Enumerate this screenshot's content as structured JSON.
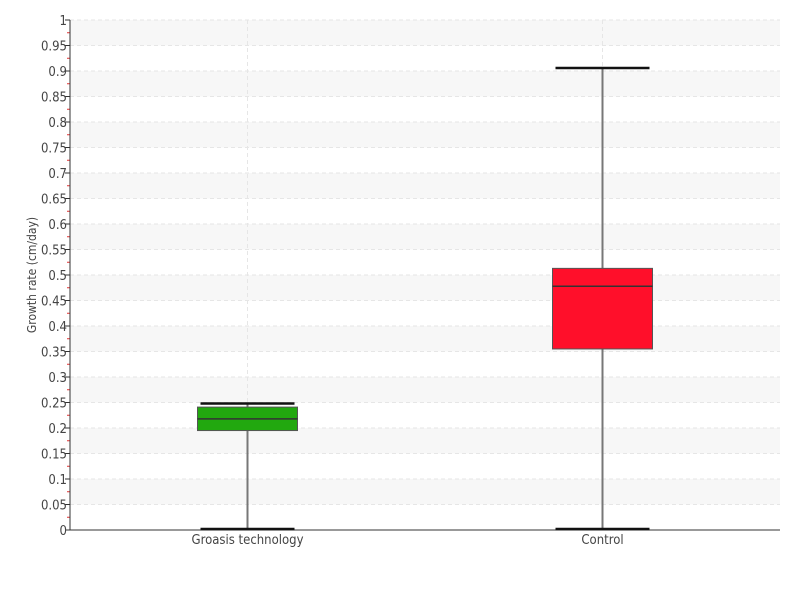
{
  "chart_data": {
    "type": "box",
    "title": "",
    "xlabel": "",
    "ylabel": "Growth rate (cm/day)",
    "ylim": [
      0,
      1
    ],
    "ytick_step": 0.05,
    "yticks": [
      "0",
      "0.05",
      "0.1",
      "0.15",
      "0.2",
      "0.25",
      "0.3",
      "0.35",
      "0.4",
      "0.45",
      "0.5",
      "0.55",
      "0.6",
      "0.65",
      "0.7",
      "0.75",
      "0.8",
      "0.85",
      "0.9",
      "0.95",
      "1"
    ],
    "grid": true,
    "categories": [
      "Groasis technology",
      "Control"
    ],
    "series": [
      {
        "category": "Groasis technology",
        "min": 0.0,
        "q1": 0.195,
        "median": 0.218,
        "q3": 0.241,
        "max": 0.248,
        "color": "#22a80f"
      },
      {
        "category": "Control",
        "min": 0.0,
        "q1": 0.355,
        "median": 0.478,
        "q3": 0.513,
        "max": 0.906,
        "color": "#ff0f2a"
      }
    ]
  }
}
